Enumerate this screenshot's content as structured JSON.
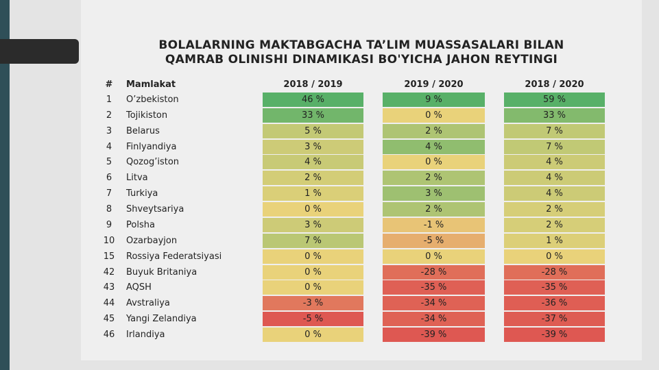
{
  "title": [
    "BOLALARNING MAKTABGACHA TA’LIM MUASSASALARI BILAN",
    "QAMRAB OLINISHI DINAMIKASI BO'YICHA JAHON REYTINGI"
  ],
  "table": {
    "header": [
      "#",
      "Mamlakat",
      "2018 / 2019",
      "2019 / 2020",
      "2018 / 2020"
    ],
    "rows": [
      [
        "1",
        "O’zbekiston",
        "46 %",
        "9 %",
        "59 %"
      ],
      [
        "2",
        "Tojikiston",
        "33 %",
        "0 %",
        "33 %"
      ],
      [
        "3",
        "Belarus",
        "5 %",
        "2 %",
        "7 %"
      ],
      [
        "4",
        "Finlyandiya",
        "3 %",
        "4 %",
        "7 %"
      ],
      [
        "5",
        "Qozog’iston",
        "4 %",
        "0 %",
        "4 %"
      ],
      [
        "6",
        "Litva",
        "2 %",
        "2 %",
        "4 %"
      ],
      [
        "7",
        "Turkiya",
        "1 %",
        "3 %",
        "4 %"
      ],
      [
        "8",
        "Shveytsariya",
        "0 %",
        "2 %",
        "2 %"
      ],
      [
        "9",
        "Polsha",
        "3 %",
        "-1 %",
        "2 %"
      ],
      [
        "10",
        "Ozarbayjon",
        "7 %",
        "-5 %",
        "1 %"
      ],
      [
        "15",
        "Rossiya Federatsiyasi",
        "0 %",
        "0 %",
        "0 %"
      ],
      [
        "42",
        "Buyuk Britaniya",
        "0 %",
        "-28 %",
        "-28 %"
      ],
      [
        "43",
        "AQSH",
        "0 %",
        "-35 %",
        "-35 %"
      ],
      [
        "44",
        "Avstraliya",
        "-3 %",
        "-34 %",
        "-36 %"
      ],
      [
        "45",
        "Yangi Zelandiya",
        "-5 %",
        "-34 %",
        "-37 %"
      ],
      [
        "46",
        "Irlandiya",
        "0 %",
        "-39 %",
        "-39 %"
      ]
    ]
  }
}
